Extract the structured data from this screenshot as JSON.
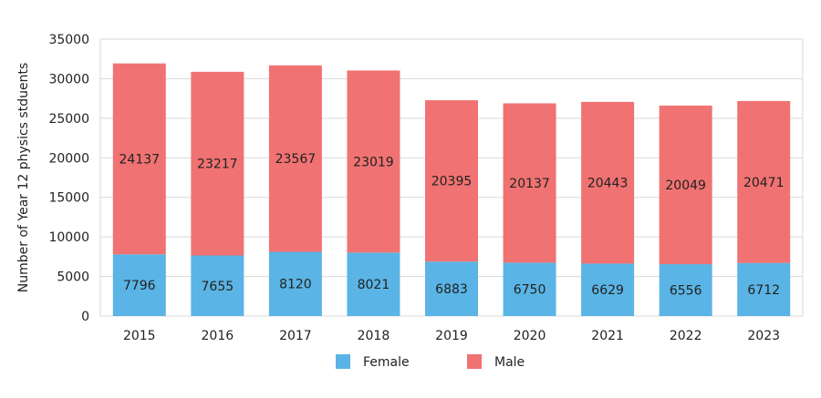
{
  "chart_data": {
    "type": "bar",
    "stacked": true,
    "categories": [
      "2015",
      "2016",
      "2017",
      "2018",
      "2019",
      "2020",
      "2021",
      "2022",
      "2023"
    ],
    "series": [
      {
        "name": "Female",
        "color": "#5ab4e5",
        "values": [
          7796,
          7655,
          8120,
          8021,
          6883,
          6750,
          6629,
          6556,
          6712
        ]
      },
      {
        "name": "Male",
        "color": "#f07272",
        "values": [
          24137,
          23217,
          23567,
          23019,
          20395,
          20137,
          20443,
          20049,
          20471
        ]
      }
    ],
    "ylabel": "Number of Year 12 physics stduents",
    "ylim": [
      0,
      35000
    ],
    "yticks": [
      0,
      5000,
      10000,
      15000,
      20000,
      25000,
      30000,
      35000
    ],
    "grid": true,
    "legend_position": "bottom"
  }
}
